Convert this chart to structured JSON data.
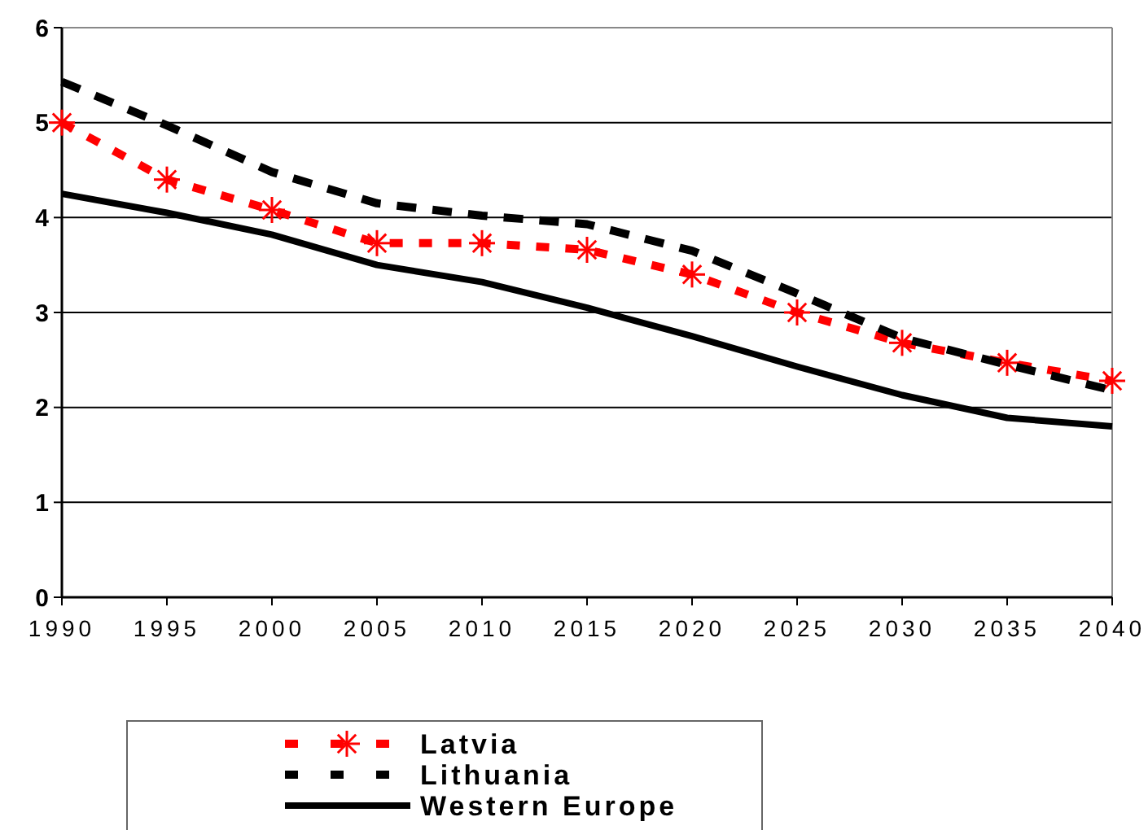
{
  "chart_data": {
    "type": "line",
    "x": [
      1990,
      1995,
      2000,
      2005,
      2010,
      2015,
      2020,
      2025,
      2030,
      2035,
      2040
    ],
    "series": [
      {
        "name": "Latvia",
        "color": "#ff0000",
        "line_style": "dashed",
        "marker": "cross",
        "values": [
          5.0,
          4.4,
          4.08,
          3.73,
          3.73,
          3.66,
          3.4,
          3.0,
          2.68,
          2.47,
          2.28
        ]
      },
      {
        "name": "Lithuania",
        "color": "#000000",
        "line_style": "dashed",
        "marker": "none",
        "values": [
          5.43,
          4.97,
          4.48,
          4.15,
          4.02,
          3.93,
          3.65,
          3.2,
          2.73,
          2.45,
          2.18
        ]
      },
      {
        "name": "Western Europe",
        "color": "#000000",
        "line_style": "solid",
        "marker": "none",
        "values": [
          4.25,
          4.05,
          3.82,
          3.5,
          3.32,
          3.05,
          2.75,
          2.43,
          2.13,
          1.89,
          1.8
        ]
      }
    ],
    "xlim": [
      1990,
      2040
    ],
    "xticks": [
      1990,
      1995,
      2000,
      2005,
      2010,
      2015,
      2020,
      2025,
      2030,
      2035,
      2040
    ],
    "ylim": [
      0,
      6
    ],
    "yticks": [
      0,
      1,
      2,
      3,
      4,
      5,
      6
    ],
    "grid": "y",
    "legend": "bottom"
  }
}
